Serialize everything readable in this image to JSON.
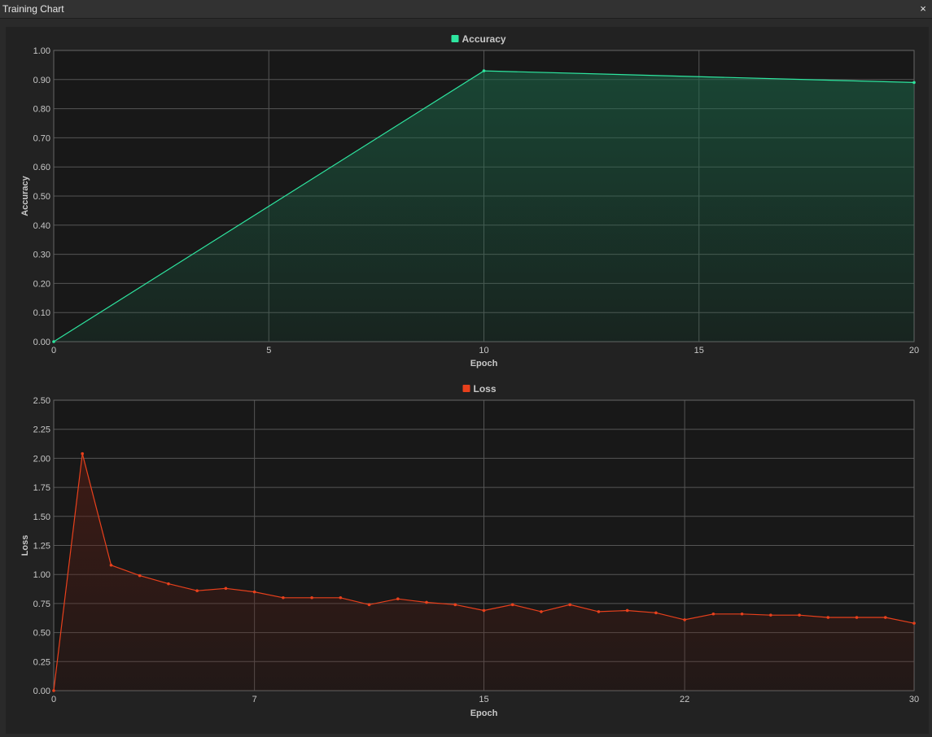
{
  "window": {
    "title": "Training Chart",
    "close_label": "×"
  },
  "chart_data": [
    {
      "type": "area",
      "legend": "Accuracy",
      "color": "#2ee6a0",
      "fill_color": "#1a6a4a",
      "xlabel": "Epoch",
      "ylabel": "Accuracy",
      "xlim": [
        0,
        20
      ],
      "ylim": [
        0,
        1.0
      ],
      "xticks": [
        0,
        5,
        10,
        15,
        20
      ],
      "yticks": [
        0,
        0.1,
        0.2,
        0.3,
        0.4,
        0.5,
        0.6,
        0.7,
        0.8,
        0.9,
        1.0
      ],
      "ytick_decimals": 2,
      "legend_placement": "top-center",
      "grid": true,
      "series": [
        {
          "name": "Accuracy",
          "x": [
            0,
            10,
            20
          ],
          "y": [
            0.0,
            0.93,
            0.89
          ]
        }
      ]
    },
    {
      "type": "area",
      "legend": "Loss",
      "color": "#e8401c",
      "fill_color": "#5a1c12",
      "xlabel": "Epoch",
      "ylabel": "Loss",
      "xlim": [
        0,
        30
      ],
      "ylim": [
        0,
        2.5
      ],
      "xticks": [
        0,
        7,
        15,
        22,
        30
      ],
      "yticks": [
        0,
        0.25,
        0.5,
        0.75,
        1.0,
        1.25,
        1.5,
        1.75,
        2.0,
        2.25,
        2.5
      ],
      "ytick_decimals": 2,
      "legend_placement": "top-center",
      "grid": true,
      "series": [
        {
          "name": "Loss",
          "x": [
            0,
            1,
            2,
            3,
            4,
            5,
            6,
            7,
            8,
            9,
            10,
            11,
            12,
            13,
            14,
            15,
            16,
            17,
            18,
            19,
            20,
            21,
            22,
            23,
            24,
            25,
            26,
            27,
            28,
            29,
            30
          ],
          "y": [
            0.0,
            2.04,
            1.08,
            0.99,
            0.92,
            0.86,
            0.88,
            0.85,
            0.8,
            0.8,
            0.8,
            0.74,
            0.79,
            0.76,
            0.74,
            0.69,
            0.74,
            0.68,
            0.74,
            0.68,
            0.69,
            0.67,
            0.61,
            0.66,
            0.66,
            0.65,
            0.65,
            0.63,
            0.63,
            0.63,
            0.58
          ]
        }
      ]
    }
  ]
}
